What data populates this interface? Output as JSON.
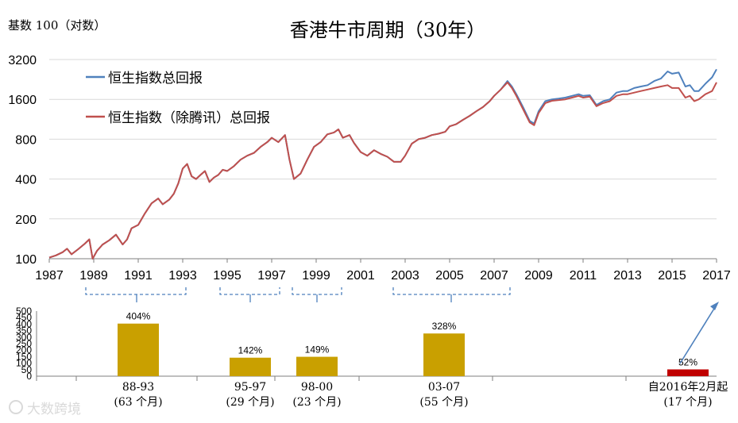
{
  "title": "香港牛市周期（30年）",
  "y_axis_note": "基数 100（对数）",
  "watermark": "大数跨境",
  "colors": {
    "hsi": "#4f81bd",
    "hsi_ex": "#c0504d",
    "bar_gold": "#c9a000",
    "bar_red": "#c00000",
    "bracket": "#4f81bd"
  },
  "chart_data": [
    {
      "type": "line",
      "title": "香港牛市周期（30年）",
      "ylabel": "基数 100（对数）",
      "yscale": "log",
      "ylim": [
        100,
        3200
      ],
      "xlim": [
        1987,
        2017
      ],
      "y_ticks": [
        "100",
        "200",
        "400",
        "800",
        "1600",
        "3200"
      ],
      "x_ticks": [
        "1987",
        "1989",
        "1991",
        "1993",
        "1995",
        "1997",
        "1999",
        "2001",
        "2003",
        "2005",
        "2007",
        "2009",
        "2011",
        "2013",
        "2015",
        "2017"
      ],
      "legend": {
        "position": "top-left",
        "items": [
          "恒生指数总回报",
          "恒生指数（除腾讯）总回报"
        ]
      },
      "series": [
        {
          "name": "恒生指数总回报",
          "x": [
            1987.0,
            1987.3,
            1987.6,
            1987.8,
            1988.0,
            1988.3,
            1988.6,
            1988.8,
            1988.95,
            1989.15,
            1989.4,
            1989.7,
            1990.0,
            1990.3,
            1990.5,
            1990.7,
            1991.0,
            1991.3,
            1991.6,
            1991.9,
            1992.1,
            1992.4,
            1992.6,
            1992.8,
            1993.0,
            1993.2,
            1993.4,
            1993.6,
            1993.8,
            1994.0,
            1994.2,
            1994.4,
            1994.6,
            1994.8,
            1995.0,
            1995.3,
            1995.6,
            1995.9,
            1996.2,
            1996.5,
            1996.8,
            1997.0,
            1997.3,
            1997.6,
            1997.8,
            1998.0,
            1998.3,
            1998.6,
            1998.9,
            1999.2,
            1999.5,
            1999.8,
            2000.0,
            2000.2,
            2000.5,
            2000.7,
            2001.0,
            2001.3,
            2001.6,
            2001.9,
            2002.2,
            2002.5,
            2002.8,
            2003.0,
            2003.3,
            2003.6,
            2003.9,
            2004.2,
            2004.5,
            2004.8,
            2005.0,
            2005.3,
            2005.6,
            2005.9,
            2006.2,
            2006.5,
            2006.8,
            2007.0,
            2007.3,
            2007.6,
            2007.8,
            2008.0,
            2008.3,
            2008.6,
            2008.8,
            2009.0,
            2009.3,
            2009.6,
            2009.9,
            2010.2,
            2010.5,
            2010.8,
            2011.0,
            2011.3,
            2011.6,
            2011.9,
            2012.2,
            2012.5,
            2012.8,
            2013.0,
            2013.3,
            2013.6,
            2013.9,
            2014.2,
            2014.5,
            2014.8,
            2015.0,
            2015.3,
            2015.6,
            2015.8,
            2016.0,
            2016.2,
            2016.5,
            2016.8,
            2017.0
          ],
          "values": [
            102,
            106,
            112,
            119,
            108,
            118,
            130,
            140,
            100,
            115,
            128,
            138,
            152,
            128,
            140,
            170,
            180,
            220,
            262,
            285,
            258,
            280,
            310,
            370,
            480,
            520,
            420,
            400,
            430,
            460,
            380,
            410,
            430,
            470,
            460,
            500,
            560,
            600,
            630,
            700,
            760,
            820,
            760,
            860,
            560,
            400,
            440,
            560,
            700,
            760,
            870,
            900,
            950,
            820,
            860,
            750,
            640,
            600,
            660,
            620,
            590,
            540,
            540,
            600,
            740,
            800,
            820,
            860,
            880,
            910,
            1000,
            1040,
            1120,
            1200,
            1300,
            1400,
            1550,
            1700,
            1900,
            2200,
            2000,
            1750,
            1400,
            1100,
            1050,
            1300,
            1550,
            1600,
            1620,
            1650,
            1700,
            1750,
            1700,
            1720,
            1450,
            1550,
            1600,
            1800,
            1850,
            1850,
            1950,
            2000,
            2050,
            2200,
            2300,
            2600,
            2500,
            2550,
            2000,
            2050,
            1850,
            1850,
            2100,
            2350,
            2700
          ]
        },
        {
          "name": "恒生指数（除腾讯）总回报",
          "x": [
            1987.0,
            1987.3,
            1987.6,
            1987.8,
            1988.0,
            1988.3,
            1988.6,
            1988.8,
            1988.95,
            1989.15,
            1989.4,
            1989.7,
            1990.0,
            1990.3,
            1990.5,
            1990.7,
            1991.0,
            1991.3,
            1991.6,
            1991.9,
            1992.1,
            1992.4,
            1992.6,
            1992.8,
            1993.0,
            1993.2,
            1993.4,
            1993.6,
            1993.8,
            1994.0,
            1994.2,
            1994.4,
            1994.6,
            1994.8,
            1995.0,
            1995.3,
            1995.6,
            1995.9,
            1996.2,
            1996.5,
            1996.8,
            1997.0,
            1997.3,
            1997.6,
            1997.8,
            1998.0,
            1998.3,
            1998.6,
            1998.9,
            1999.2,
            1999.5,
            1999.8,
            2000.0,
            2000.2,
            2000.5,
            2000.7,
            2001.0,
            2001.3,
            2001.6,
            2001.9,
            2002.2,
            2002.5,
            2002.8,
            2003.0,
            2003.3,
            2003.6,
            2003.9,
            2004.2,
            2004.5,
            2004.8,
            2005.0,
            2005.3,
            2005.6,
            2005.9,
            2006.2,
            2006.5,
            2006.8,
            2007.0,
            2007.3,
            2007.6,
            2007.8,
            2008.0,
            2008.3,
            2008.6,
            2008.8,
            2009.0,
            2009.3,
            2009.6,
            2009.9,
            2010.2,
            2010.5,
            2010.8,
            2011.0,
            2011.3,
            2011.6,
            2011.9,
            2012.2,
            2012.5,
            2012.8,
            2013.0,
            2013.3,
            2013.6,
            2013.9,
            2014.2,
            2014.5,
            2014.8,
            2015.0,
            2015.3,
            2015.6,
            2015.8,
            2016.0,
            2016.2,
            2016.5,
            2016.8,
            2017.0
          ],
          "values": [
            102,
            106,
            112,
            119,
            108,
            118,
            130,
            140,
            100,
            115,
            128,
            138,
            152,
            128,
            140,
            170,
            180,
            220,
            262,
            285,
            258,
            280,
            310,
            370,
            480,
            520,
            420,
            400,
            430,
            460,
            380,
            410,
            430,
            470,
            460,
            500,
            560,
            600,
            630,
            700,
            760,
            820,
            760,
            860,
            560,
            400,
            440,
            560,
            700,
            760,
            870,
            900,
            950,
            820,
            860,
            750,
            640,
            600,
            660,
            620,
            590,
            540,
            540,
            600,
            740,
            800,
            820,
            860,
            880,
            910,
            1000,
            1040,
            1120,
            1200,
            1300,
            1400,
            1550,
            1700,
            1900,
            2150,
            1950,
            1700,
            1350,
            1070,
            1020,
            1260,
            1500,
            1560,
            1580,
            1600,
            1650,
            1700,
            1650,
            1680,
            1420,
            1500,
            1550,
            1700,
            1750,
            1750,
            1800,
            1850,
            1900,
            1950,
            2000,
            2050,
            1950,
            1950,
            1650,
            1700,
            1550,
            1600,
            1750,
            1850,
            2150
          ]
        }
      ]
    },
    {
      "type": "bar",
      "title": "",
      "ylim": [
        0,
        500
      ],
      "y_ticks": [
        "0",
        "50",
        "100",
        "150",
        "200",
        "250",
        "300",
        "350",
        "400",
        "450",
        "500"
      ],
      "categories": [
        "88-93",
        "95-97",
        "98-00",
        "03-07",
        "自2016年2月起"
      ],
      "durations": [
        "(63 个月)",
        "(29 个月)",
        "(23 个月)",
        "(55 个月)",
        "(17 个月)"
      ],
      "values": [
        404,
        142,
        149,
        328,
        52
      ],
      "data_labels": [
        "404%",
        "142%",
        "149%",
        "328%",
        "52%"
      ]
    }
  ]
}
